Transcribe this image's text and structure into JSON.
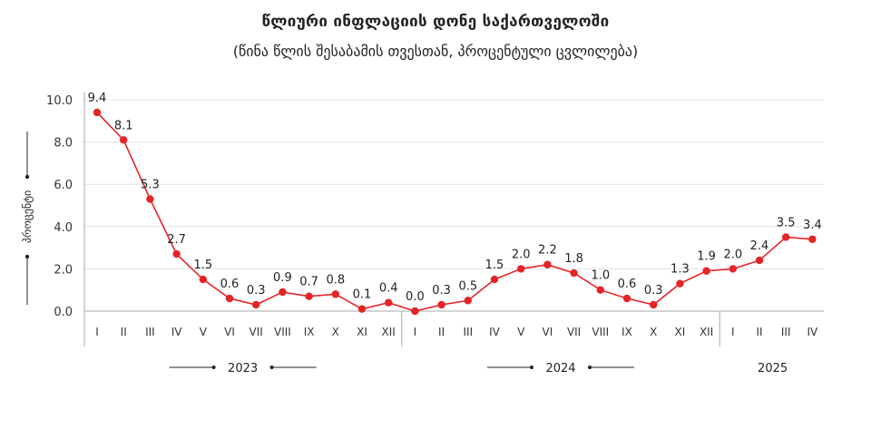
{
  "chart_data": {
    "type": "line",
    "title": "წლიური ინფლაციის დონე საქართველოში",
    "subtitle": "(წინა წლის შესაბამის თვესთან, პროცენტული ცვლილება)",
    "ylabel": "პროცენტი",
    "ylim": [
      0,
      10
    ],
    "yticks": [
      "0.0",
      "2.0",
      "4.0",
      "6.0",
      "8.0",
      "10.0"
    ],
    "grid": true,
    "x": [
      "I",
      "II",
      "III",
      "IV",
      "V",
      "VI",
      "VII",
      "VIII",
      "IX",
      "X",
      "XI",
      "XII",
      "I",
      "II",
      "III",
      "IV",
      "V",
      "VI",
      "VII",
      "VIII",
      "IX",
      "X",
      "XI",
      "XII",
      "I",
      "II",
      "III",
      "IV"
    ],
    "values": [
      9.4,
      8.1,
      5.3,
      2.7,
      1.5,
      0.6,
      0.3,
      0.9,
      0.7,
      0.8,
      0.1,
      0.4,
      0.0,
      0.3,
      0.5,
      1.5,
      2.0,
      2.2,
      1.8,
      1.0,
      0.6,
      0.3,
      1.3,
      1.9,
      2.0,
      2.4,
      3.5,
      3.4
    ],
    "data_labels": [
      "9.4",
      "8.1",
      "5.3",
      "2.7",
      "1.5",
      "0.6",
      "0.3",
      "0.9",
      "0.7",
      "0.8",
      "0.1",
      "0.4",
      "0.0",
      "0.3",
      "0.5",
      "1.5",
      "2.0",
      "2.2",
      "1.8",
      "1.0",
      "0.6",
      "0.3",
      "1.3",
      "1.9",
      "2.0",
      "2.4",
      "3.5",
      "3.4"
    ],
    "years": [
      {
        "label": "2023",
        "months": 12
      },
      {
        "label": "2024",
        "months": 12
      },
      {
        "label": "2025",
        "months": 4
      }
    ],
    "line_color": "#e52428",
    "grid_color": "#e3e3e3",
    "axis_color": "#aaaaaa"
  }
}
